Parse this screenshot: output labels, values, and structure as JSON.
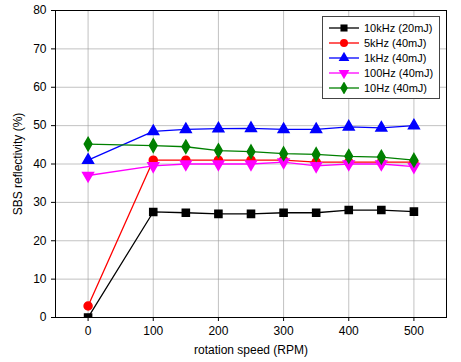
{
  "chart_data": {
    "type": "line",
    "xlabel": "rotation speed (RPM)",
    "ylabel": "SBS reflectivity (%)",
    "x": [
      0,
      100,
      150,
      200,
      250,
      300,
      350,
      400,
      450,
      500
    ],
    "series": [
      {
        "name": "10kHz (20mJ)",
        "color": "#000000",
        "marker": "square",
        "values": [
          0,
          27.5,
          27.3,
          27,
          27,
          27.3,
          27.3,
          28,
          28,
          27.6
        ]
      },
      {
        "name": "5kHz (40mJ)",
        "color": "#ff0000",
        "marker": "circle",
        "values": [
          3,
          41,
          41,
          41,
          41,
          41,
          40.5,
          40.5,
          40.5,
          40.5
        ]
      },
      {
        "name": "1kHz (40mJ)",
        "color": "#0000ff",
        "marker": "triangle",
        "values": [
          41,
          48.5,
          49,
          49.2,
          49.3,
          49,
          49,
          49.7,
          49.4,
          50
        ]
      },
      {
        "name": "100Hz (40mJ)",
        "color": "#ff00ff",
        "marker": "triangle-down",
        "values": [
          37,
          39.5,
          40,
          40,
          40,
          40.5,
          39.5,
          40,
          40,
          39.3
        ]
      },
      {
        "name": "10Hz (40mJ)",
        "color": "#008000",
        "marker": "diamond",
        "values": [
          45.2,
          44.8,
          44.5,
          43.5,
          43.2,
          42.7,
          42.5,
          42,
          41.8,
          41
        ]
      }
    ],
    "xlim": [
      -50,
      550
    ],
    "ylim": [
      0,
      80
    ],
    "xticks": [
      0,
      100,
      200,
      300,
      400,
      500
    ],
    "yticks": [
      0,
      10,
      20,
      30,
      40,
      50,
      60,
      70,
      80
    ],
    "grid": true,
    "legend": "top-right"
  }
}
